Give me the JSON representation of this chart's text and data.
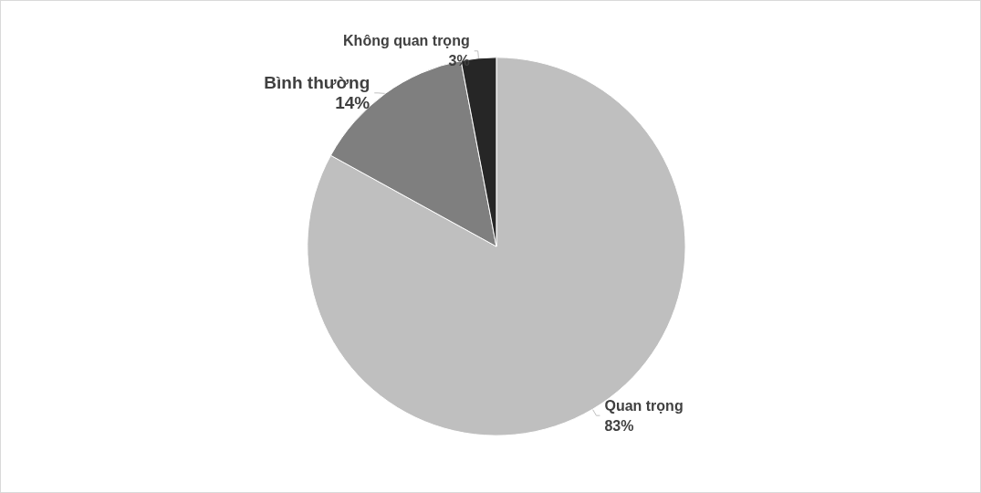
{
  "chart_data": {
    "type": "pie",
    "categories": [
      "Quan trọng",
      "Bình thường",
      "Không quan trọng"
    ],
    "values": [
      83,
      14,
      3
    ],
    "colors": [
      "#bfbfbf",
      "#7f7f7f",
      "#262626"
    ],
    "value_labels": [
      "83%",
      "14%",
      "3%"
    ]
  }
}
